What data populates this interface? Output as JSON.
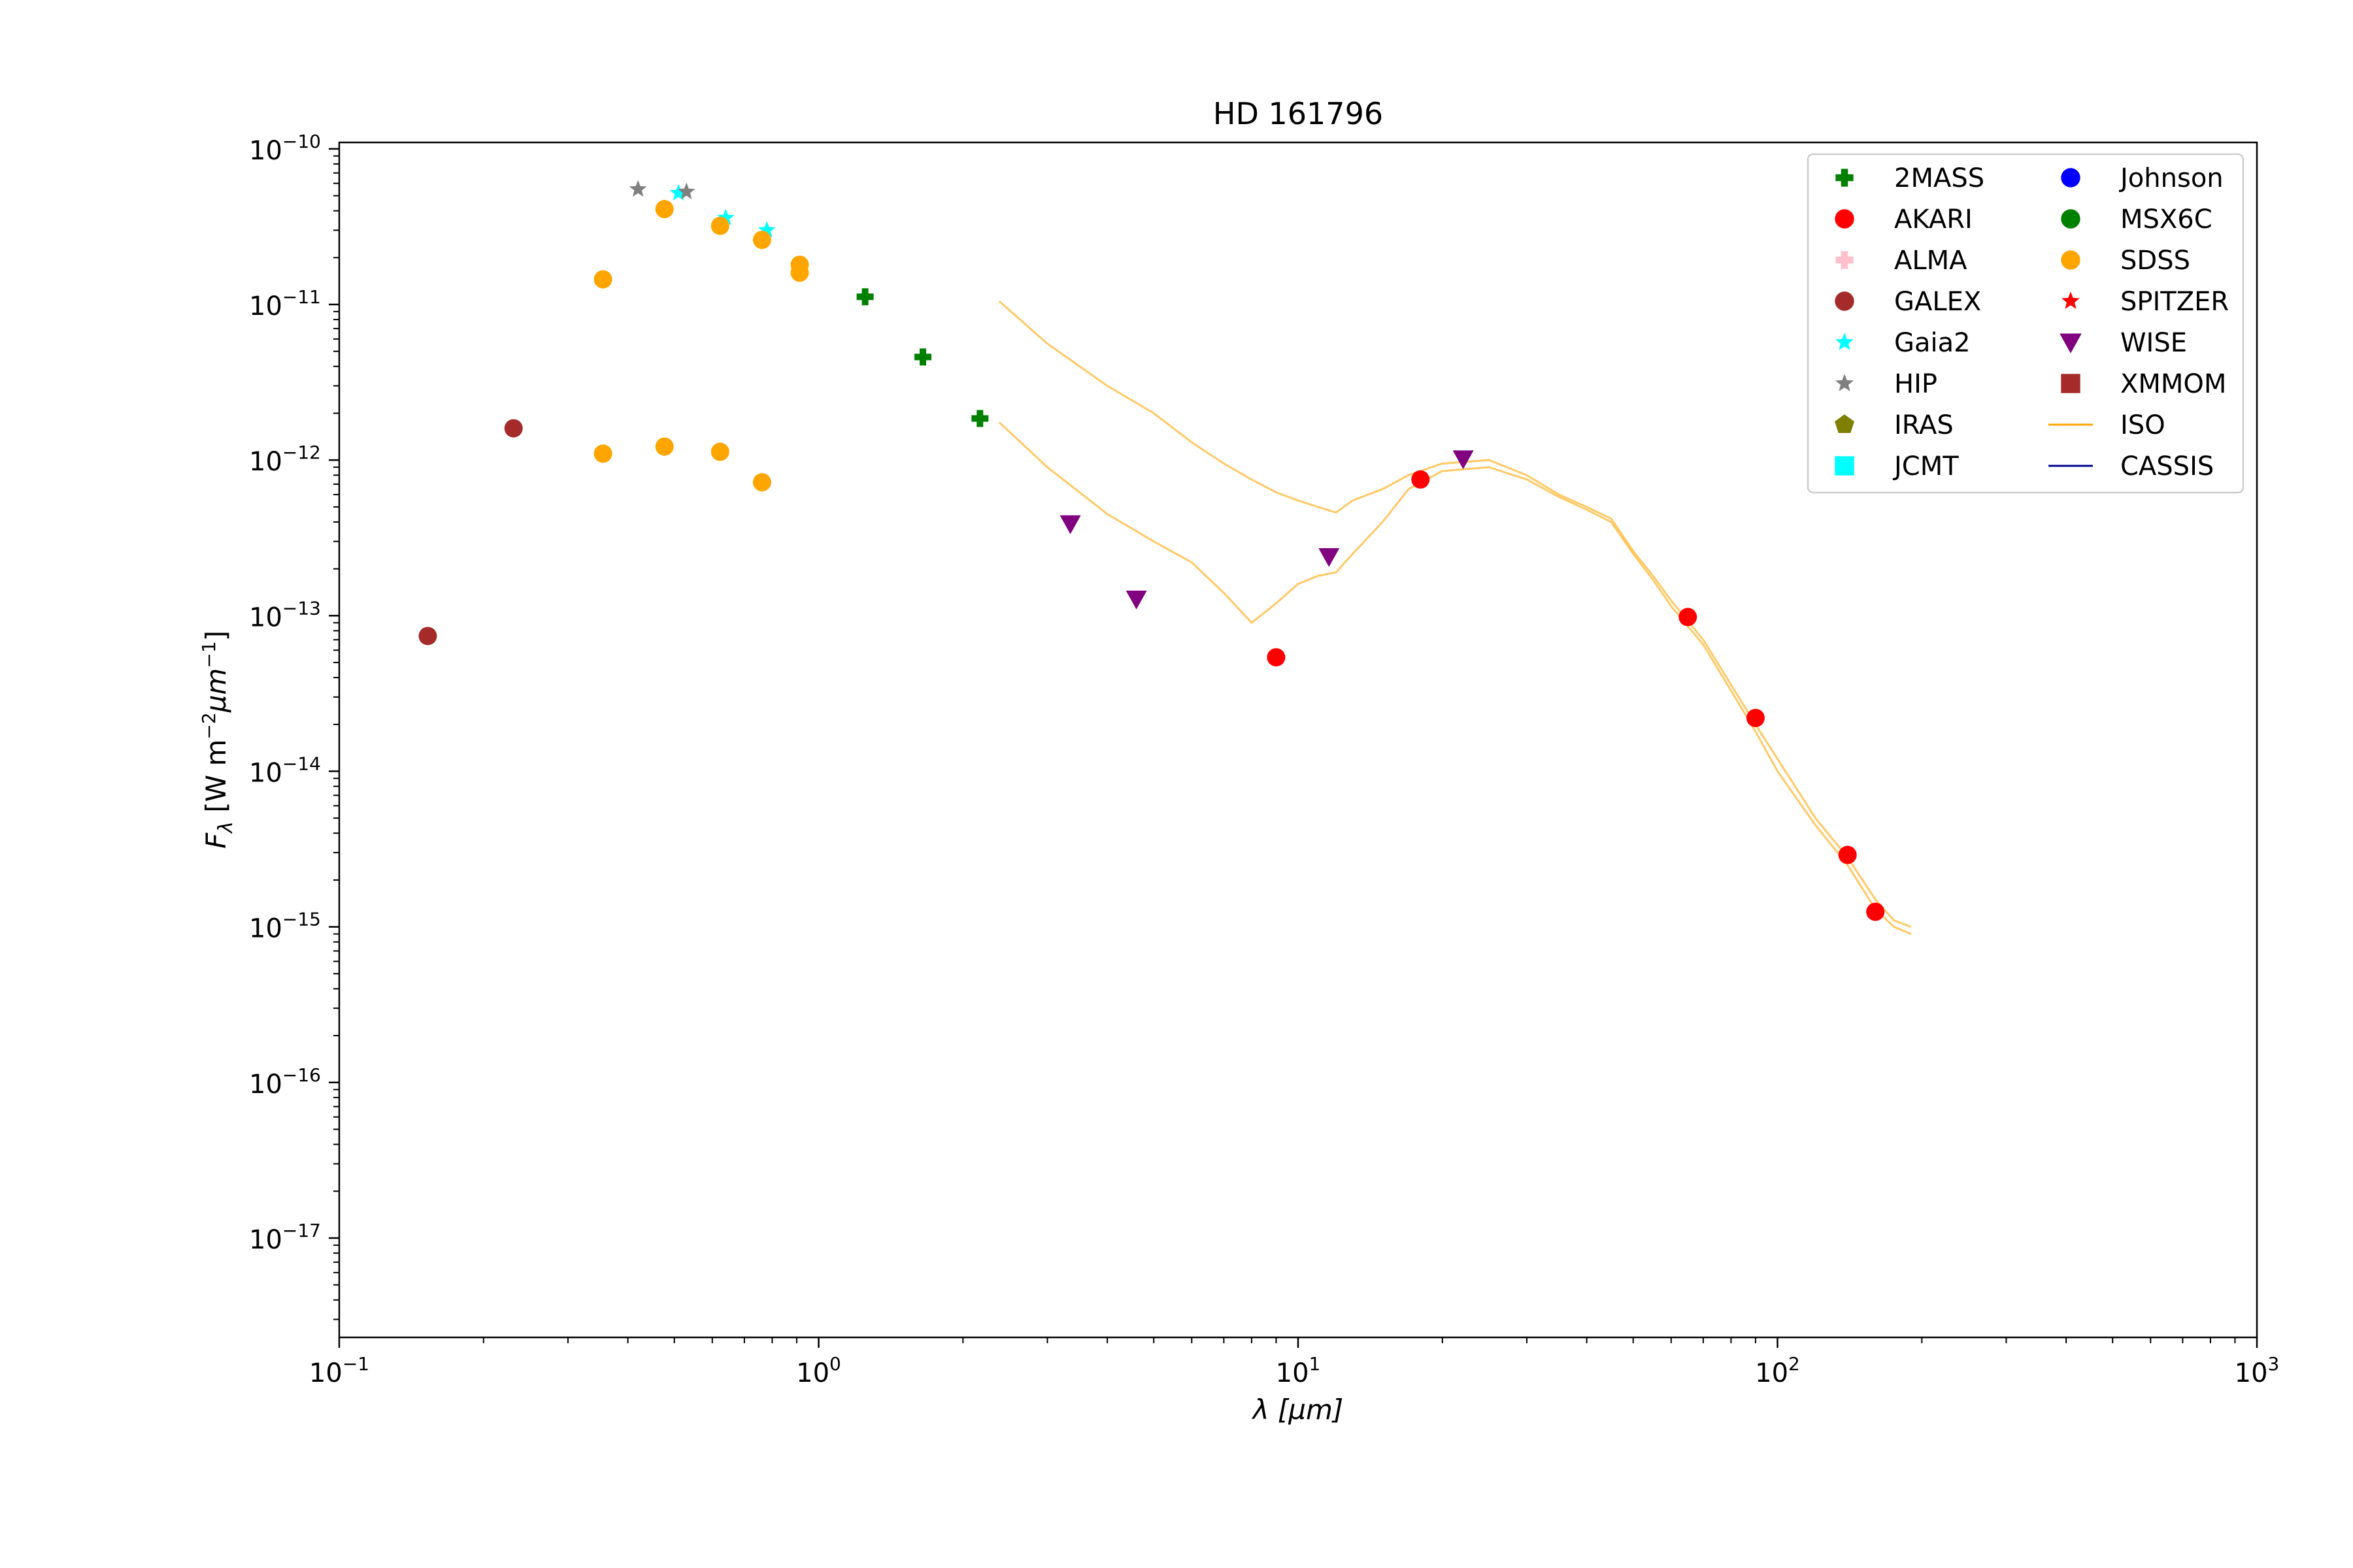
{
  "chart_data": {
    "type": "scatter",
    "title": "HD 161796",
    "xlabel": "λ [μm]",
    "ylabel": "Fλ [W m⁻²μm⁻¹]",
    "x_scale": "log",
    "y_scale": "log",
    "xlim": [
      0.1,
      1000
    ],
    "ylim": [
      2.3e-18,
      1.1e-10
    ],
    "x_ticks": [
      {
        "value": 0.1,
        "base": "10",
        "exp": "−1"
      },
      {
        "value": 1,
        "base": "10",
        "exp": "0"
      },
      {
        "value": 10,
        "base": "10",
        "exp": "1"
      },
      {
        "value": 100,
        "base": "10",
        "exp": "2"
      },
      {
        "value": 1000,
        "base": "10",
        "exp": "3"
      }
    ],
    "y_ticks": [
      {
        "value": 1e-10,
        "base": "10",
        "exp": "−10"
      },
      {
        "value": 1e-11,
        "base": "10",
        "exp": "−11"
      },
      {
        "value": 1e-12,
        "base": "10",
        "exp": "−12"
      },
      {
        "value": 1e-13,
        "base": "10",
        "exp": "−13"
      },
      {
        "value": 1e-14,
        "base": "10",
        "exp": "−14"
      },
      {
        "value": 1e-15,
        "base": "10",
        "exp": "−15"
      },
      {
        "value": 1e-16,
        "base": "10",
        "exp": "−16"
      },
      {
        "value": 1e-17,
        "base": "10",
        "exp": "−17"
      }
    ],
    "grid": false,
    "legend_position": "top-right",
    "legend": [
      {
        "name": "2MASS",
        "marker": "plus",
        "color": "#008000"
      },
      {
        "name": "AKARI",
        "marker": "circle",
        "color": "#ff0000"
      },
      {
        "name": "ALMA",
        "marker": "plus",
        "color": "#ffc0cb"
      },
      {
        "name": "GALEX",
        "marker": "circle",
        "color": "#a52a2a"
      },
      {
        "name": "Gaia2",
        "marker": "star",
        "color": "#00ffff"
      },
      {
        "name": "HIP",
        "marker": "star",
        "color": "#808080"
      },
      {
        "name": "IRAS",
        "marker": "pentagon",
        "color": "#808000"
      },
      {
        "name": "JCMT",
        "marker": "square",
        "color": "#00ffff"
      },
      {
        "name": "Johnson",
        "marker": "circle",
        "color": "#0000ff"
      },
      {
        "name": "MSX6C",
        "marker": "circle",
        "color": "#008000"
      },
      {
        "name": "SDSS",
        "marker": "circle",
        "color": "#ffa500"
      },
      {
        "name": "SPITZER",
        "marker": "star",
        "color": "#ff0000"
      },
      {
        "name": "WISE",
        "marker": "triangle-down",
        "color": "#800080"
      },
      {
        "name": "XMMOM",
        "marker": "square",
        "color": "#a52a2a"
      },
      {
        "name": "ISO",
        "marker": "line",
        "color": "#ffa500"
      },
      {
        "name": "CASSIS",
        "marker": "line",
        "color": "#00008b"
      }
    ],
    "series": [
      {
        "name": "2MASS",
        "marker": "plus",
        "color": "#008000",
        "points": [
          [
            1.25,
            1.12e-11
          ],
          [
            1.65,
            4.6e-12
          ],
          [
            2.17,
            1.85e-12
          ]
        ]
      },
      {
        "name": "AKARI",
        "marker": "circle",
        "color": "#ff0000",
        "points": [
          [
            9.0,
            5.4e-14
          ],
          [
            18.0,
            7.5e-13
          ],
          [
            65.0,
            9.8e-14
          ],
          [
            90.0,
            2.2e-14
          ],
          [
            140.0,
            2.9e-15
          ],
          [
            160.0,
            1.25e-15
          ]
        ]
      },
      {
        "name": "GALEX",
        "marker": "circle",
        "color": "#a52a2a",
        "points": [
          [
            0.153,
            7.4e-14
          ],
          [
            0.231,
            1.6e-12
          ]
        ]
      },
      {
        "name": "Gaia2",
        "marker": "star",
        "color": "#00ffff",
        "points": [
          [
            0.51,
            5.2e-11
          ],
          [
            0.64,
            3.6e-11
          ],
          [
            0.78,
            3e-11
          ]
        ]
      },
      {
        "name": "HIP",
        "marker": "star",
        "color": "#808080",
        "points": [
          [
            0.42,
            5.5e-11
          ],
          [
            0.53,
            5.3e-11
          ]
        ]
      },
      {
        "name": "SDSS",
        "marker": "circle",
        "color": "#ffa500",
        "points": [
          [
            0.355,
            1.45e-11
          ],
          [
            0.477,
            4.1e-11
          ],
          [
            0.623,
            3.2e-11
          ],
          [
            0.762,
            2.6e-11
          ],
          [
            0.913,
            1.8e-11
          ],
          [
            0.913,
            1.6e-11
          ],
          [
            0.355,
            1.1e-12
          ],
          [
            0.477,
            1.22e-12
          ],
          [
            0.623,
            1.13e-12
          ],
          [
            0.762,
            7.2e-13
          ]
        ]
      },
      {
        "name": "WISE",
        "marker": "triangle-down",
        "color": "#800080",
        "points": [
          [
            3.35,
            3.9e-13
          ],
          [
            4.6,
            1.28e-13
          ],
          [
            11.6,
            2.4e-13
          ],
          [
            22.1,
            1.02e-12
          ]
        ]
      }
    ],
    "spectra": [
      {
        "name": "ISO",
        "color": "#ffa500",
        "points": [
          [
            2.38,
            1.05e-11
          ],
          [
            3.0,
            5.6e-12
          ],
          [
            4.0,
            3e-12
          ],
          [
            5.0,
            2e-12
          ],
          [
            6.0,
            1.3e-12
          ],
          [
            7.0,
            9.5e-13
          ],
          [
            8.0,
            7.5e-13
          ],
          [
            9.0,
            6.2e-13
          ],
          [
            10.0,
            5.5e-13
          ],
          [
            11.0,
            5e-13
          ],
          [
            12.0,
            4.6e-13
          ],
          [
            13.0,
            5.5e-13
          ],
          [
            15.0,
            6.5e-13
          ],
          [
            17.0,
            8e-13
          ],
          [
            20.0,
            9.5e-13
          ],
          [
            25.0,
            1e-12
          ],
          [
            30.0,
            8e-13
          ],
          [
            35.0,
            6e-13
          ],
          [
            40.0,
            5e-13
          ],
          [
            45.0,
            4.2e-13
          ],
          [
            50.0,
            2.6e-13
          ],
          [
            55.0,
            1.8e-13
          ],
          [
            60.0,
            1.25e-13
          ],
          [
            70.0,
            7e-14
          ],
          [
            80.0,
            3.6e-14
          ],
          [
            90.0,
            2e-14
          ],
          [
            100.0,
            1.2e-14
          ],
          [
            120.0,
            5e-15
          ],
          [
            140.0,
            2.8e-15
          ],
          [
            160.0,
            1.5e-15
          ],
          [
            175.0,
            1.1e-15
          ],
          [
            190.0,
            1e-15
          ]
        ]
      },
      {
        "name": "ISO",
        "color": "#ffa500",
        "points": [
          [
            2.38,
            1.75e-12
          ],
          [
            3.0,
            9e-13
          ],
          [
            4.0,
            4.5e-13
          ],
          [
            5.0,
            3e-13
          ],
          [
            6.0,
            2.2e-13
          ],
          [
            7.0,
            1.4e-13
          ],
          [
            8.0,
            9e-14
          ],
          [
            9.0,
            1.2e-13
          ],
          [
            10.0,
            1.6e-13
          ],
          [
            11.0,
            1.8e-13
          ],
          [
            12.0,
            1.9e-13
          ],
          [
            13.0,
            2.5e-13
          ],
          [
            15.0,
            4e-13
          ],
          [
            17.0,
            6.5e-13
          ],
          [
            20.0,
            8.5e-13
          ],
          [
            25.0,
            9e-13
          ],
          [
            30.0,
            7.5e-13
          ],
          [
            35.0,
            5.8e-13
          ],
          [
            40.0,
            4.8e-13
          ],
          [
            45.0,
            4e-13
          ],
          [
            50.0,
            2.5e-13
          ],
          [
            55.0,
            1.7e-13
          ],
          [
            60.0,
            1.15e-13
          ],
          [
            70.0,
            6.5e-14
          ],
          [
            80.0,
            3.3e-14
          ],
          [
            90.0,
            1.8e-14
          ],
          [
            100.0,
            1e-14
          ],
          [
            120.0,
            4.5e-15
          ],
          [
            140.0,
            2.5e-15
          ],
          [
            160.0,
            1.3e-15
          ],
          [
            175.0,
            1e-15
          ],
          [
            190.0,
            9e-16
          ]
        ]
      }
    ]
  }
}
